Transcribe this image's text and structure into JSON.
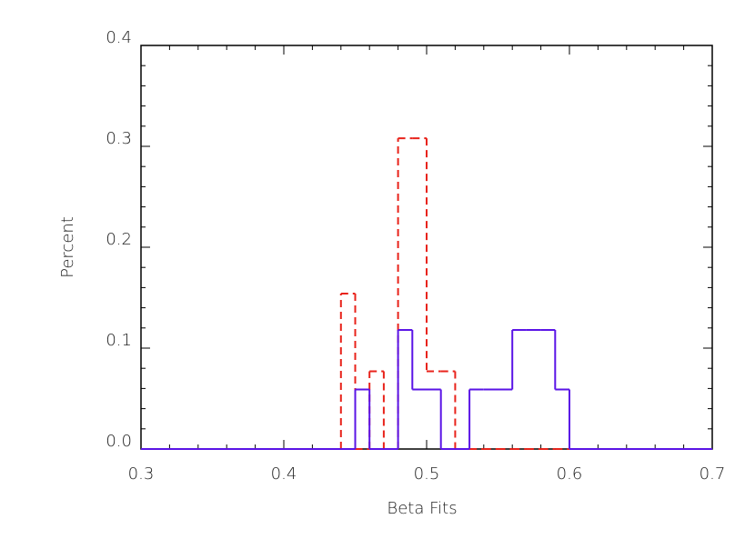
{
  "chart_data": {
    "type": "histogram",
    "x_label": "Beta Fits",
    "y_label": "Percent",
    "bins": [
      0.3,
      0.31,
      0.32,
      0.33,
      0.34,
      0.35,
      0.36,
      0.37,
      0.38,
      0.39,
      0.4,
      0.41,
      0.42,
      0.43,
      0.44,
      0.45,
      0.46,
      0.47,
      0.48,
      0.49,
      0.5,
      0.51,
      0.52,
      0.53,
      0.54,
      0.55,
      0.56,
      0.57,
      0.58,
      0.59,
      0.6,
      0.61,
      0.62,
      0.63,
      0.64,
      0.65,
      0.66,
      0.67,
      0.68,
      0.69,
      0.7
    ],
    "series": [
      {
        "color": "#e8231b",
        "dash": true,
        "values": [
          0,
          0,
          0,
          0,
          0,
          0,
          0,
          0,
          0,
          0,
          0,
          0,
          0,
          0,
          0.154,
          0,
          0.077,
          0,
          0.308,
          0.308,
          0.077,
          0.077,
          0,
          0,
          0,
          0,
          0,
          0,
          0,
          0,
          0,
          0,
          0,
          0,
          0,
          0,
          0,
          0,
          0,
          0
        ]
      },
      {
        "color": "#5a14e6",
        "dash": false,
        "values": [
          0,
          0,
          0,
          0,
          0,
          0,
          0,
          0,
          0,
          0,
          0,
          0,
          0,
          0,
          0,
          0.059,
          0,
          0,
          0.118,
          0.059,
          0.059,
          0,
          0,
          0.059,
          0.059,
          0.059,
          0.118,
          0.118,
          0.118,
          0.059,
          0,
          0,
          0,
          0,
          0,
          0,
          0,
          0,
          0,
          0
        ]
      }
    ],
    "xlim": [
      0.3,
      0.7
    ],
    "xticks": [
      0.3,
      0.4,
      0.5,
      0.6,
      0.7
    ],
    "ylim": [
      0,
      0.4
    ],
    "yticks": [
      {
        "value": 0,
        "label": "0.0"
      },
      0.1,
      0.2,
      0.3,
      0.4
    ]
  }
}
